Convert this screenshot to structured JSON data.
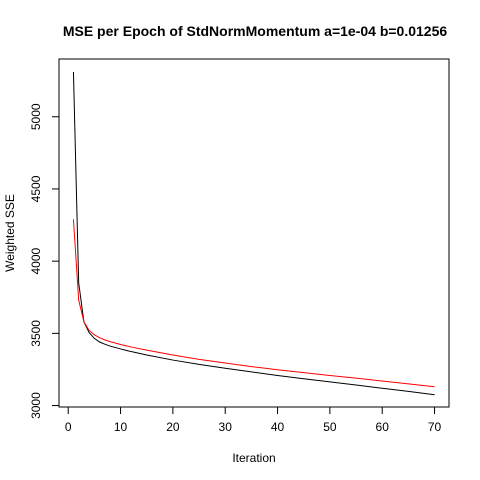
{
  "chart_data": {
    "type": "line",
    "title": "MSE per Epoch of StdNormMomentum a=1e-04 b=0.01256",
    "xlabel": "Iteration",
    "ylabel": "Weighted SSE",
    "xlim": [
      -1.76,
      72.76
    ],
    "ylim": [
      2990,
      5400
    ],
    "xticks": [
      0,
      10,
      20,
      30,
      40,
      50,
      60,
      70
    ],
    "yticks": [
      3000,
      3500,
      4000,
      4500,
      5000
    ],
    "grid": false,
    "legend": "none",
    "series": [
      {
        "color": "#000000",
        "x": [
          1,
          2,
          3,
          4,
          5,
          6,
          7,
          8,
          10,
          12,
          15,
          20,
          25,
          30,
          35,
          40,
          45,
          50,
          55,
          60,
          65,
          70
        ],
        "y": [
          5310,
          3850,
          3580,
          3505,
          3465,
          3440,
          3425,
          3412,
          3392,
          3374,
          3350,
          3315,
          3285,
          3258,
          3233,
          3208,
          3186,
          3164,
          3142,
          3120,
          3098,
          3075
        ]
      },
      {
        "color": "#ff0000",
        "x": [
          1,
          2,
          3,
          4,
          5,
          6,
          7,
          8,
          10,
          12,
          15,
          20,
          25,
          30,
          35,
          40,
          45,
          50,
          55,
          60,
          65,
          70
        ],
        "y": [
          4290,
          3730,
          3580,
          3520,
          3490,
          3470,
          3455,
          3443,
          3423,
          3406,
          3384,
          3350,
          3320,
          3295,
          3270,
          3248,
          3228,
          3208,
          3190,
          3170,
          3150,
          3130
        ]
      }
    ]
  }
}
